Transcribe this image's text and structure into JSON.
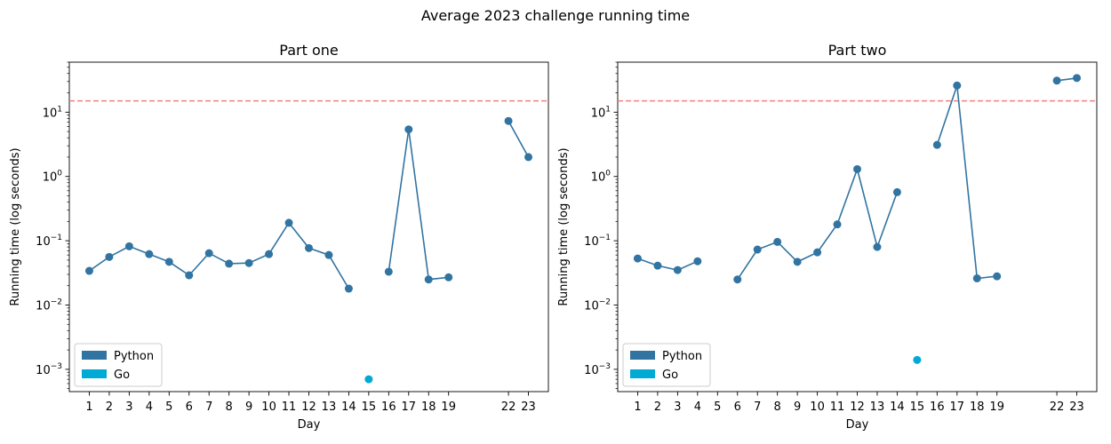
{
  "figure": {
    "title": "Average 2023 challenge running time"
  },
  "chart_data": [
    {
      "type": "line",
      "title": "Part one",
      "xlabel": "Day",
      "ylabel": "Running time (log seconds)",
      "yscale": "log",
      "ylim": [
        0.00045,
        60
      ],
      "xlim": [
        0.0,
        24.0
      ],
      "yticks": [
        {
          "value": 0.001,
          "base": "10",
          "exp": "−3"
        },
        {
          "value": 0.01,
          "base": "10",
          "exp": "−2"
        },
        {
          "value": 0.1,
          "base": "10",
          "exp": "−1"
        },
        {
          "value": 1,
          "base": "10",
          "exp": "0"
        },
        {
          "value": 10,
          "base": "10",
          "exp": "1"
        }
      ],
      "xticks": [
        1,
        2,
        3,
        4,
        5,
        6,
        7,
        8,
        9,
        10,
        11,
        12,
        13,
        14,
        15,
        16,
        17,
        18,
        19,
        22,
        23
      ],
      "threshold": {
        "value": 15,
        "color": "#f08080"
      },
      "legend": {
        "position": "lower-left",
        "entries": [
          {
            "label": "Python",
            "color": "#3274a1"
          },
          {
            "label": "Go",
            "color": "#00aad4"
          }
        ]
      },
      "series": [
        {
          "name": "Python",
          "color": "#3274a1",
          "segments": [
            [
              [
                1,
                0.034
              ],
              [
                2,
                0.056
              ],
              [
                3,
                0.082
              ],
              [
                4,
                0.062
              ],
              [
                5,
                0.047
              ],
              [
                6,
                0.029
              ],
              [
                7,
                0.064
              ],
              [
                8,
                0.044
              ],
              [
                9,
                0.045
              ],
              [
                10,
                0.062
              ],
              [
                11,
                0.19
              ],
              [
                12,
                0.077
              ],
              [
                13,
                0.06
              ],
              [
                14,
                0.018
              ]
            ],
            [
              [
                16,
                0.033
              ],
              [
                17,
                5.4
              ],
              [
                18,
                0.025
              ],
              [
                19,
                0.027
              ]
            ],
            [
              [
                22,
                7.3
              ],
              [
                23,
                2.0
              ]
            ]
          ]
        },
        {
          "name": "Go",
          "color": "#00aad4",
          "segments": [
            [
              [
                15,
                0.0007
              ]
            ]
          ]
        }
      ]
    },
    {
      "type": "line",
      "title": "Part two",
      "xlabel": "Day",
      "ylabel": "Running time (log seconds)",
      "yscale": "log",
      "ylim": [
        0.00045,
        60
      ],
      "xlim": [
        0.0,
        24.0
      ],
      "yticks": [
        {
          "value": 0.001,
          "base": "10",
          "exp": "−3"
        },
        {
          "value": 0.01,
          "base": "10",
          "exp": "−2"
        },
        {
          "value": 0.1,
          "base": "10",
          "exp": "−1"
        },
        {
          "value": 1,
          "base": "10",
          "exp": "0"
        },
        {
          "value": 10,
          "base": "10",
          "exp": "1"
        }
      ],
      "xticks": [
        1,
        2,
        3,
        4,
        5,
        6,
        7,
        8,
        9,
        10,
        11,
        12,
        13,
        14,
        15,
        16,
        17,
        18,
        19,
        22,
        23
      ],
      "threshold": {
        "value": 15,
        "color": "#f08080"
      },
      "legend": {
        "position": "lower-left",
        "entries": [
          {
            "label": "Python",
            "color": "#3274a1"
          },
          {
            "label": "Go",
            "color": "#00aad4"
          }
        ]
      },
      "series": [
        {
          "name": "Python",
          "color": "#3274a1",
          "segments": [
            [
              [
                1,
                0.053
              ],
              [
                2,
                0.041
              ],
              [
                3,
                0.035
              ],
              [
                4,
                0.048
              ]
            ],
            [
              [
                6,
                0.025
              ],
              [
                7,
                0.073
              ],
              [
                8,
                0.096
              ],
              [
                9,
                0.047
              ],
              [
                10,
                0.066
              ],
              [
                11,
                0.18
              ],
              [
                12,
                1.3
              ],
              [
                13,
                0.08
              ],
              [
                14,
                0.57
              ]
            ],
            [
              [
                16,
                3.1
              ],
              [
                17,
                26
              ],
              [
                18,
                0.026
              ],
              [
                19,
                0.028
              ]
            ],
            [
              [
                22,
                31
              ],
              [
                23,
                34
              ]
            ]
          ]
        },
        {
          "name": "Go",
          "color": "#00aad4",
          "segments": [
            [
              [
                15,
                0.0014
              ]
            ]
          ]
        }
      ]
    }
  ]
}
